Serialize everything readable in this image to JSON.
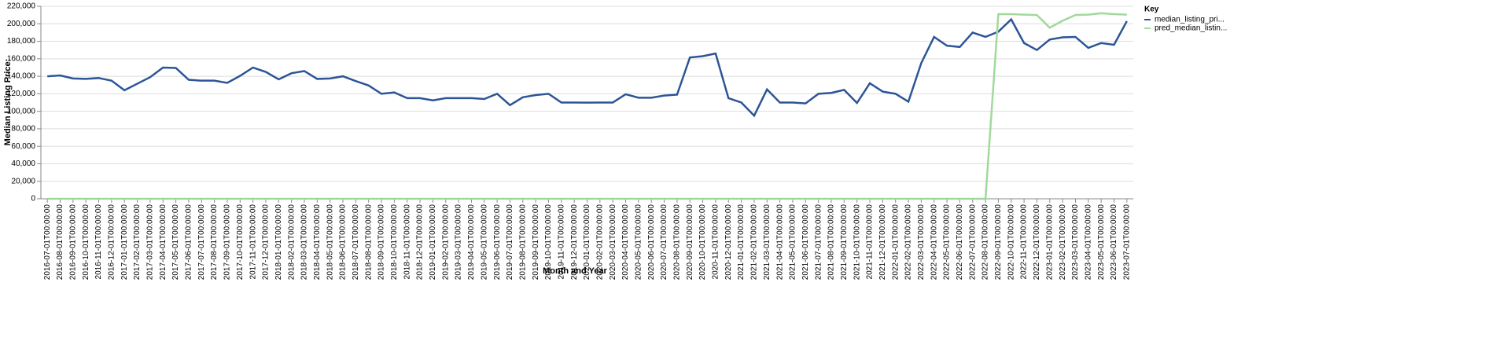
{
  "chart_data": {
    "type": "line",
    "x_label": "Month and Year",
    "y_label": "Median Listing Price:",
    "legend_title": "Key",
    "legend": "right",
    "grid": true,
    "categories": [
      "2016-07-01T00:00:00",
      "2016-08-01T00:00:00",
      "2016-09-01T00:00:00",
      "2016-10-01T00:00:00",
      "2016-11-01T00:00:00",
      "2016-12-01T00:00:00",
      "2017-01-01T00:00:00",
      "2017-02-01T00:00:00",
      "2017-03-01T00:00:00",
      "2017-04-01T00:00:00",
      "2017-05-01T00:00:00",
      "2017-06-01T00:00:00",
      "2017-07-01T00:00:00",
      "2017-08-01T00:00:00",
      "2017-09-01T00:00:00",
      "2017-10-01T00:00:00",
      "2017-11-01T00:00:00",
      "2017-12-01T00:00:00",
      "2018-01-01T00:00:00",
      "2018-02-01T00:00:00",
      "2018-03-01T00:00:00",
      "2018-04-01T00:00:00",
      "2018-05-01T00:00:00",
      "2018-06-01T00:00:00",
      "2018-07-01T00:00:00",
      "2018-08-01T00:00:00",
      "2018-09-01T00:00:00",
      "2018-10-01T00:00:00",
      "2018-11-01T00:00:00",
      "2018-12-01T00:00:00",
      "2019-01-01T00:00:00",
      "2019-02-01T00:00:00",
      "2019-03-01T00:00:00",
      "2019-04-01T00:00:00",
      "2019-05-01T00:00:00",
      "2019-06-01T00:00:00",
      "2019-07-01T00:00:00",
      "2019-08-01T00:00:00",
      "2019-09-01T00:00:00",
      "2019-10-01T00:00:00",
      "2019-11-01T00:00:00",
      "2019-12-01T00:00:00",
      "2020-01-01T00:00:00",
      "2020-02-01T00:00:00",
      "2020-03-01T00:00:00",
      "2020-04-01T00:00:00",
      "2020-05-01T00:00:00",
      "2020-06-01T00:00:00",
      "2020-07-01T00:00:00",
      "2020-08-01T00:00:00",
      "2020-09-01T00:00:00",
      "2020-10-01T00:00:00",
      "2020-11-01T00:00:00",
      "2020-12-01T00:00:00",
      "2021-01-01T00:00:00",
      "2021-02-01T00:00:00",
      "2021-03-01T00:00:00",
      "2021-04-01T00:00:00",
      "2021-05-01T00:00:00",
      "2021-06-01T00:00:00",
      "2021-07-01T00:00:00",
      "2021-08-01T00:00:00",
      "2021-09-01T00:00:00",
      "2021-10-01T00:00:00",
      "2021-11-01T00:00:00",
      "2021-12-01T00:00:00",
      "2022-01-01T00:00:00",
      "2022-02-01T00:00:00",
      "2022-03-01T00:00:00",
      "2022-04-01T00:00:00",
      "2022-05-01T00:00:00",
      "2022-06-01T00:00:00",
      "2022-07-01T00:00:00",
      "2022-08-01T00:00:00",
      "2022-09-01T00:00:00",
      "2022-10-01T00:00:00",
      "2022-11-01T00:00:00",
      "2022-12-01T00:00:00",
      "2023-01-01T00:00:00",
      "2023-02-01T00:00:00",
      "2023-03-01T00:00:00",
      "2023-04-01T00:00:00",
      "2023-05-01T00:00:00",
      "2023-06-01T00:00:00",
      "2023-07-01T00:00:00"
    ],
    "series": [
      {
        "name": "median_listing_pri...",
        "color": "#2c5596",
        "values": [
          140000,
          141000,
          137500,
          137000,
          138000,
          135000,
          124000,
          131500,
          139000,
          150000,
          149500,
          136000,
          135000,
          135000,
          132500,
          140500,
          150000,
          145000,
          136500,
          143500,
          146000,
          137000,
          137500,
          140000,
          134500,
          129500,
          120000,
          121500,
          115000,
          115000,
          112500,
          115000,
          115000,
          115000,
          114000,
          120000,
          107000,
          116000,
          118500,
          120000,
          110000,
          110000,
          109900,
          110000,
          110000,
          119500,
          115500,
          115500,
          118000,
          119000,
          161500,
          163000,
          166000,
          115000,
          110000,
          95000,
          125000,
          110000,
          110000,
          109000,
          120000,
          121000,
          124500,
          109500,
          132000,
          122500,
          120000,
          111000,
          155000,
          185000,
          175000,
          173500,
          190000,
          185000,
          191000,
          205000,
          178000,
          170000,
          182000,
          184500,
          185000,
          172500,
          178000,
          176000,
          203000
        ]
      },
      {
        "name": "pred_median_listin...",
        "color": "#a1d99b",
        "values": [
          0,
          0,
          0,
          0,
          0,
          0,
          0,
          0,
          0,
          0,
          0,
          0,
          0,
          0,
          0,
          0,
          0,
          0,
          0,
          0,
          0,
          0,
          0,
          0,
          0,
          0,
          0,
          0,
          0,
          0,
          0,
          0,
          0,
          0,
          0,
          0,
          0,
          0,
          0,
          0,
          0,
          0,
          0,
          0,
          0,
          0,
          0,
          0,
          0,
          0,
          0,
          0,
          0,
          0,
          0,
          0,
          0,
          0,
          0,
          0,
          0,
          0,
          0,
          0,
          0,
          0,
          0,
          0,
          0,
          0,
          0,
          0,
          0,
          0,
          211000,
          211000,
          210500,
          210000,
          195500,
          203500,
          210000,
          210500,
          212000,
          211000,
          210500
        ]
      }
    ],
    "ylim": [
      0,
      220000
    ],
    "yticks": [
      0,
      {
        "value": 20000,
        "label": "20,000"
      },
      {
        "value": 40000,
        "label": "40,000"
      },
      {
        "value": 60000,
        "label": "60,000"
      },
      {
        "value": 80000,
        "label": "80,000"
      },
      {
        "value": 100000,
        "label": "100,000"
      },
      {
        "value": 120000,
        "label": "120,000"
      },
      {
        "value": 140000,
        "label": "140,000"
      },
      {
        "value": 160000,
        "label": "160,000"
      },
      {
        "value": 180000,
        "label": "180,000"
      },
      {
        "value": 200000,
        "label": "200,000"
      },
      {
        "value": 220000,
        "label": "220,000"
      }
    ]
  }
}
